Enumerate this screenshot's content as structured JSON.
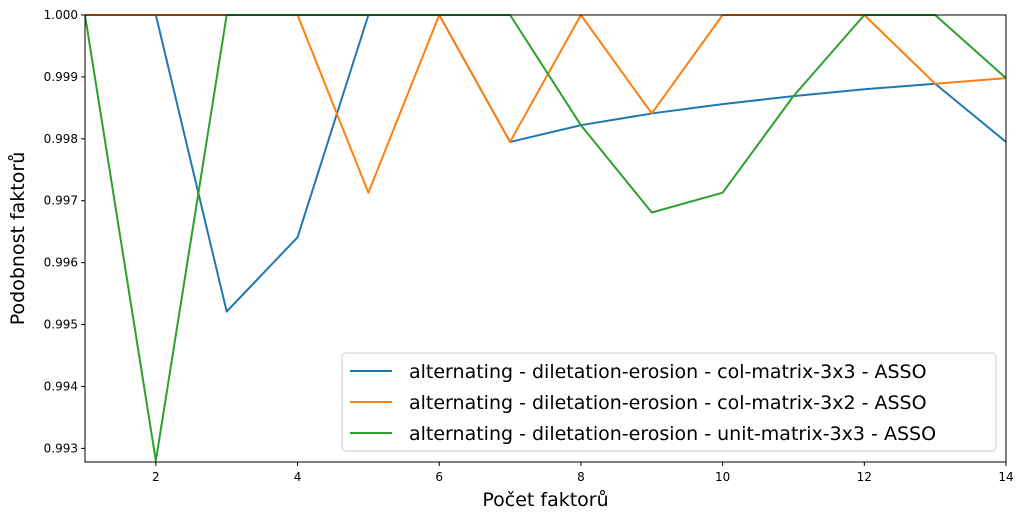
{
  "chart_data": {
    "type": "line",
    "xlabel": "Počet faktorů",
    "ylabel": "Podobnost faktorů",
    "xlim": [
      1,
      14
    ],
    "ylim": [
      0.99278,
      1.0
    ],
    "x_ticks": [
      2,
      4,
      6,
      8,
      10,
      12,
      14
    ],
    "y_ticks": [
      0.993,
      0.994,
      0.995,
      0.996,
      0.997,
      0.998,
      0.999,
      1.0
    ],
    "y_tick_labels": [
      "0.993",
      "0.994",
      "0.995",
      "0.996",
      "0.997",
      "0.998",
      "0.999",
      "1.000"
    ],
    "grid": false,
    "legend_position": "bottom-right",
    "x": [
      1,
      2,
      3,
      4,
      5,
      6,
      7,
      8,
      9,
      10,
      11,
      12,
      13,
      14
    ],
    "series": [
      {
        "name": "alternating - diletation-erosion - col-matrix-3x3 - ASSO",
        "color": "#1f77b4",
        "values": [
          1.0,
          1.0,
          0.99521,
          0.99641,
          1.0,
          1.0,
          0.99795,
          0.99822,
          0.99841,
          0.99856,
          0.99869,
          0.9988,
          0.99889,
          0.99795
        ]
      },
      {
        "name": "alternating - diletation-erosion - col-matrix-3x2 - ASSO",
        "color": "#ff7f0e",
        "values": [
          1.0,
          1.0,
          1.0,
          1.0,
          0.99713,
          1.0,
          0.99795,
          1.0,
          0.99841,
          1.0,
          1.0,
          1.0,
          0.99889,
          0.99898
        ]
      },
      {
        "name": "alternating - diletation-erosion - unit-matrix-3x3 - ASSO",
        "color": "#2ca02c",
        "values": [
          1.0,
          0.9928,
          1.0,
          1.0,
          1.0,
          1.0,
          1.0,
          0.99822,
          0.99681,
          0.99713,
          0.99869,
          1.0,
          1.0,
          0.99898
        ]
      }
    ]
  }
}
